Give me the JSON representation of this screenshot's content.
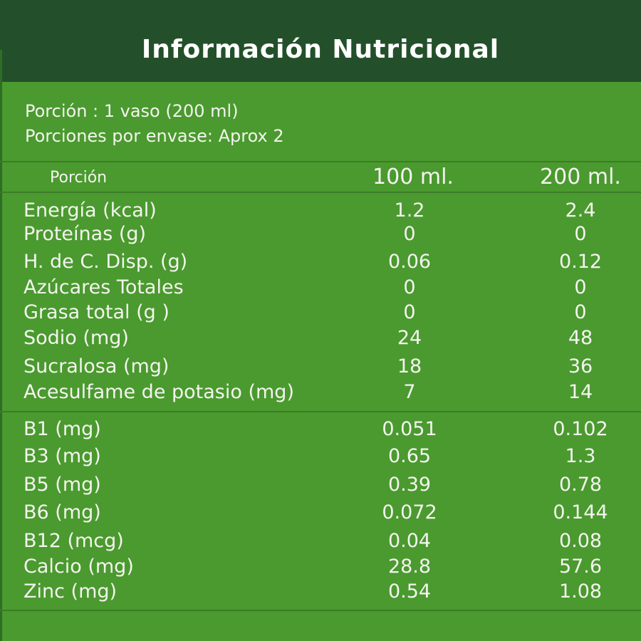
{
  "header": {
    "title": "Información Nutricional"
  },
  "serving": {
    "size": "Porción : 1 vaso (200 ml)",
    "per_container": "Porciones por envase: Aprox 2"
  },
  "table": {
    "columns": [
      "Porción",
      "100 ml.",
      "200 ml."
    ],
    "groups": [
      {
        "rows": [
          [
            "Energía (kcal)",
            "1.2",
            "2.4"
          ],
          [
            "Proteínas (g)",
            "0",
            "0"
          ],
          [
            "H. de C. Disp. (g)",
            "0.06",
            "0.12"
          ],
          [
            "Azúcares Totales",
            "0",
            "0"
          ],
          [
            "Grasa total (g )",
            "0",
            "0"
          ],
          [
            "Sodio (mg)",
            "24",
            "48"
          ],
          [
            "Sucralosa (mg)",
            "18",
            "36"
          ],
          [
            "Acesulfame de potasio (mg)",
            "7",
            "14"
          ]
        ]
      },
      {
        "rows": [
          [
            "B1 (mg)",
            "0.051",
            "0.102"
          ],
          [
            "B3 (mg)",
            "0.65",
            "1.3"
          ],
          [
            "B5 (mg)",
            "0.39",
            "0.78"
          ],
          [
            "B6 (mg)",
            "0.072",
            "0.144"
          ],
          [
            "B12 (mcg)",
            "0.04",
            "0.08"
          ],
          [
            "Calcio (mg)",
            "28.8",
            "57.6"
          ],
          [
            "Zinc (mg)",
            "0.54",
            "1.08"
          ]
        ]
      }
    ]
  }
}
